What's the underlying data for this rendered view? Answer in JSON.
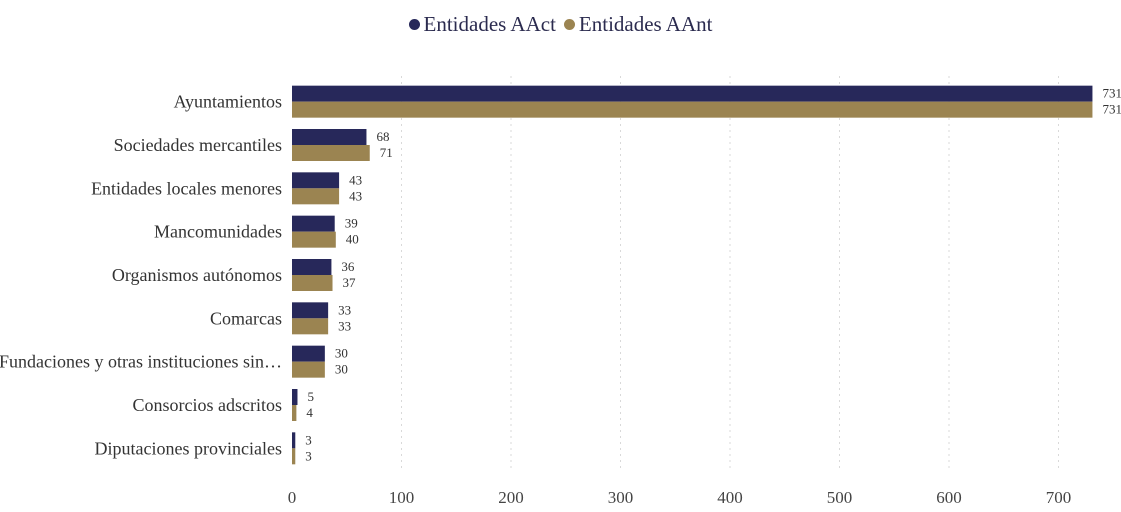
{
  "chart_data": {
    "type": "bar",
    "orientation": "horizontal",
    "categories": [
      "Ayuntamientos",
      "Sociedades mercantiles",
      "Entidades locales menores",
      "Mancomunidades",
      "Organismos autónomos",
      "Comarcas",
      "Fundaciones y otras instituciones sin…",
      "Consorcios adscritos",
      "Diputaciones provinciales"
    ],
    "series": [
      {
        "name": "Entidades AAct",
        "color": "#27285a",
        "values": [
          731,
          68,
          43,
          39,
          36,
          33,
          30,
          5,
          3
        ]
      },
      {
        "name": "Entidades AAnt",
        "color": "#9b8451",
        "values": [
          731,
          71,
          43,
          40,
          37,
          33,
          30,
          4,
          3
        ]
      }
    ],
    "xlim": [
      0,
      750
    ],
    "xticks": [
      0,
      100,
      200,
      300,
      400,
      500,
      600,
      700
    ],
    "grid": true,
    "legend_position": "top-center",
    "title": "",
    "xlabel": "",
    "ylabel": ""
  }
}
